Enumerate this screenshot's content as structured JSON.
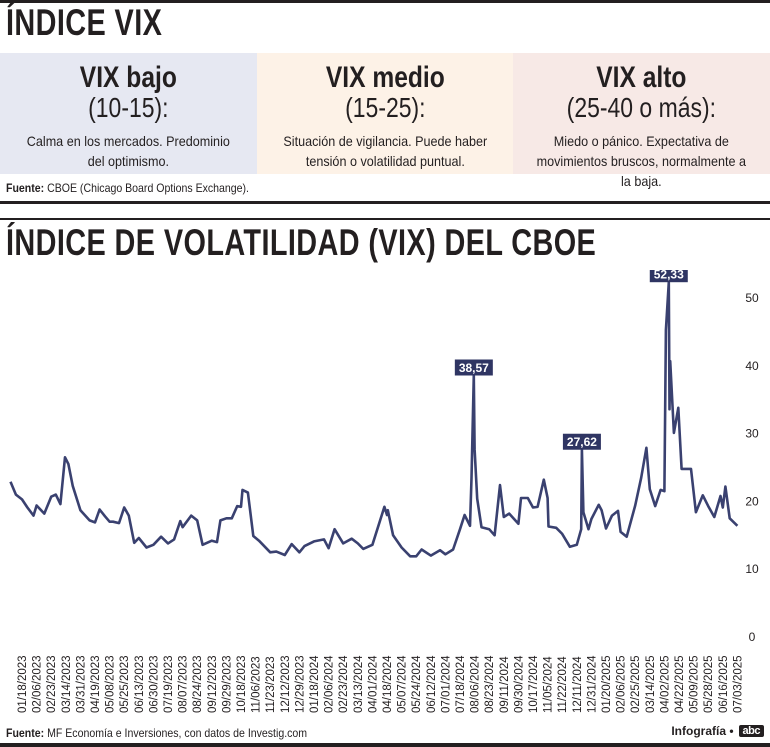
{
  "header": {
    "title": "ÍNDICE VIX"
  },
  "levels": [
    {
      "name": "VIX bajo",
      "range": "(10-15):",
      "description": "Calma en los mercados. Predominio del optimismo.",
      "color": "#e6e8f2"
    },
    {
      "name": "VIX medio",
      "range": "(15-25):",
      "description": "Situación de vigilancia. Puede haber tensión o volatilidad puntual.",
      "color": "#fdf2e7"
    },
    {
      "name": "VIX alto",
      "range": "(25-40 o más):",
      "description": "Miedo o pánico. Expectativa de movimientos bruscos, normalmente a la baja.",
      "color": "#f7e9e6"
    }
  ],
  "source_top": {
    "label": "Fuente:",
    "text": " CBOE (Chicago Board Options Exchange)."
  },
  "source_bottom": {
    "label": "Fuente:",
    "text": " MF Economía e Inversiones, con datos de Investig.com"
  },
  "credit": {
    "text": "Infografía •",
    "logo": "abc"
  },
  "chart_data": {
    "type": "line",
    "title": "ÍNDICE DE VOLATILIDAD (VIX) DEL CBOE",
    "xlabel": "",
    "ylabel": "",
    "ylim": [
      0,
      55
    ],
    "y_ticks": [
      0,
      10,
      20,
      30,
      40,
      50
    ],
    "grid": false,
    "y_axis_side": "right",
    "line_color": "#3a4170",
    "x_tick_labels": [
      "01/18/2023",
      "02/06/2023",
      "02/23/2023",
      "03/14/2023",
      "03/31/2023",
      "04/19/2023",
      "05/08/2023",
      "05/25/2023",
      "06/13/2023",
      "06/30/2023",
      "07/19/2023",
      "08/07/2023",
      "08/24/2023",
      "09/12/2023",
      "09/29/2023",
      "10/18/2023",
      "11/06/2023",
      "11/23/2023",
      "12/12/2023",
      "12/29/2023",
      "01/18/2024",
      "02/06/2024",
      "02/23/2024",
      "03/13/2024",
      "04/01/2024",
      "04/18/2024",
      "05/07/2024",
      "05/24/2024",
      "06/12/2024",
      "07/01/2024",
      "07/18/2024",
      "08/06/2024",
      "08/23/2024",
      "09/11/2024",
      "09/30/2024",
      "10/17/2024",
      "11/05/2024",
      "11/22/2024",
      "12/11/2024",
      "12/31/2024",
      "01/20/2025",
      "02/06/2025",
      "02/25/2025",
      "03/14/2025",
      "04/02/2025",
      "04/22/2025",
      "05/09/2025",
      "05/28/2025",
      "06/16/2025",
      "07/03/2025"
    ],
    "points": [
      [
        "01/03/2023",
        22.9
      ],
      [
        "01/10/2023",
        21.0
      ],
      [
        "01/18/2023",
        20.3
      ],
      [
        "01/25/2023",
        19.1
      ],
      [
        "02/02/2023",
        17.9
      ],
      [
        "02/06/2023",
        19.4
      ],
      [
        "02/15/2023",
        18.2
      ],
      [
        "02/23/2023",
        20.7
      ],
      [
        "03/01/2023",
        21.0
      ],
      [
        "03/07/2023",
        19.6
      ],
      [
        "03/13/2023",
        26.5
      ],
      [
        "03/17/2023",
        25.5
      ],
      [
        "03/22/2023",
        22.3
      ],
      [
        "03/31/2023",
        18.7
      ],
      [
        "04/12/2023",
        17.2
      ],
      [
        "04/19/2023",
        16.9
      ],
      [
        "04/25/2023",
        18.8
      ],
      [
        "05/02/2023",
        17.8
      ],
      [
        "05/08/2023",
        17.0
      ],
      [
        "05/12/2023",
        17.0
      ],
      [
        "05/19/2023",
        16.8
      ],
      [
        "05/25/2023",
        19.1
      ],
      [
        "05/31/2023",
        17.9
      ],
      [
        "06/07/2023",
        13.9
      ],
      [
        "06/13/2023",
        14.6
      ],
      [
        "06/22/2023",
        13.2
      ],
      [
        "06/30/2023",
        13.6
      ],
      [
        "07/10/2023",
        14.8
      ],
      [
        "07/19/2023",
        13.8
      ],
      [
        "07/27/2023",
        14.4
      ],
      [
        "08/04/2023",
        17.1
      ],
      [
        "08/07/2023",
        16.2
      ],
      [
        "08/17/2023",
        17.9
      ],
      [
        "08/24/2023",
        17.2
      ],
      [
        "08/31/2023",
        13.6
      ],
      [
        "09/12/2023",
        14.2
      ],
      [
        "09/18/2023",
        14.0
      ],
      [
        "09/22/2023",
        17.2
      ],
      [
        "09/29/2023",
        17.5
      ],
      [
        "10/06/2023",
        17.5
      ],
      [
        "10/13/2023",
        19.3
      ],
      [
        "10/18/2023",
        19.2
      ],
      [
        "10/20/2023",
        21.7
      ],
      [
        "10/27/2023",
        21.3
      ],
      [
        "11/03/2023",
        14.9
      ],
      [
        "11/10/2023",
        14.2
      ],
      [
        "11/23/2023",
        12.5
      ],
      [
        "12/01/2023",
        12.6
      ],
      [
        "12/12/2023",
        12.1
      ],
      [
        "12/20/2023",
        13.7
      ],
      [
        "12/29/2023",
        12.5
      ],
      [
        "01/05/2024",
        13.4
      ],
      [
        "01/18/2024",
        14.1
      ],
      [
        "01/31/2024",
        14.4
      ],
      [
        "02/06/2024",
        13.1
      ],
      [
        "02/13/2024",
        15.9
      ],
      [
        "02/23/2024",
        13.8
      ],
      [
        "03/05/2024",
        14.5
      ],
      [
        "03/13/2024",
        13.8
      ],
      [
        "03/20/2024",
        13.0
      ],
      [
        "04/01/2024",
        13.6
      ],
      [
        "04/15/2024",
        19.2
      ],
      [
        "04/18/2024",
        18.0
      ],
      [
        "04/19/2024",
        18.7
      ],
      [
        "04/26/2024",
        15.0
      ],
      [
        "05/07/2024",
        13.2
      ],
      [
        "05/17/2024",
        11.9
      ],
      [
        "05/24/2024",
        11.9
      ],
      [
        "05/31/2024",
        12.9
      ],
      [
        "06/12/2024",
        12.0
      ],
      [
        "06/24/2024",
        12.8
      ],
      [
        "07/01/2024",
        12.2
      ],
      [
        "07/10/2024",
        12.9
      ],
      [
        "07/18/2024",
        15.9
      ],
      [
        "07/24/2024",
        18.0
      ],
      [
        "07/31/2024",
        16.4
      ],
      [
        "08/02/2024",
        23.4
      ],
      [
        "08/05/2024",
        38.57
      ],
      [
        "08/06/2024",
        27.7
      ],
      [
        "08/09/2024",
        20.4
      ],
      [
        "08/14/2024",
        16.2
      ],
      [
        "08/23/2024",
        15.9
      ],
      [
        "08/30/2024",
        15.0
      ],
      [
        "09/06/2024",
        22.4
      ],
      [
        "09/11/2024",
        17.7
      ],
      [
        "09/18/2024",
        18.2
      ],
      [
        "09/30/2024",
        16.7
      ],
      [
        "10/03/2024",
        20.5
      ],
      [
        "10/11/2024",
        20.5
      ],
      [
        "10/17/2024",
        19.1
      ],
      [
        "10/23/2024",
        19.2
      ],
      [
        "10/31/2024",
        23.2
      ],
      [
        "11/05/2024",
        20.5
      ],
      [
        "11/06/2024",
        16.3
      ],
      [
        "11/15/2024",
        16.1
      ],
      [
        "11/22/2024",
        15.2
      ],
      [
        "12/02/2024",
        13.3
      ],
      [
        "12/11/2024",
        13.6
      ],
      [
        "12/17/2024",
        15.9
      ],
      [
        "12/18/2024",
        27.62
      ],
      [
        "12/20/2024",
        18.4
      ],
      [
        "12/27/2024",
        15.9
      ],
      [
        "12/31/2024",
        17.4
      ],
      [
        "01/10/2025",
        19.5
      ],
      [
        "01/14/2025",
        18.7
      ],
      [
        "01/20/2025",
        16.0
      ],
      [
        "01/27/2025",
        17.9
      ],
      [
        "02/03/2025",
        18.6
      ],
      [
        "02/06/2025",
        15.5
      ],
      [
        "02/14/2025",
        14.8
      ],
      [
        "02/25/2025",
        19.4
      ],
      [
        "03/04/2025",
        23.5
      ],
      [
        "03/10/2025",
        27.9
      ],
      [
        "03/14/2025",
        21.8
      ],
      [
        "03/21/2025",
        19.3
      ],
      [
        "03/28/2025",
        21.7
      ],
      [
        "04/02/2025",
        21.5
      ],
      [
        "04/04/2025",
        45.3
      ],
      [
        "04/08/2025",
        52.33
      ],
      [
        "04/09/2025",
        33.6
      ],
      [
        "04/10/2025",
        40.7
      ],
      [
        "04/15/2025",
        30.1
      ],
      [
        "04/21/2025",
        33.8
      ],
      [
        "04/25/2025",
        24.8
      ],
      [
        "05/06/2025",
        24.8
      ],
      [
        "05/12/2025",
        18.4
      ],
      [
        "05/21/2025",
        20.9
      ],
      [
        "05/28/2025",
        19.3
      ],
      [
        "06/05/2025",
        17.7
      ],
      [
        "06/13/2025",
        20.8
      ],
      [
        "06/16/2025",
        19.1
      ],
      [
        "06/19/2025",
        22.2
      ],
      [
        "06/24/2025",
        17.5
      ],
      [
        "07/03/2025",
        16.4
      ]
    ],
    "annotations": [
      {
        "date": "08/05/2024",
        "value": 38.57,
        "label": "38,57"
      },
      {
        "date": "12/18/2024",
        "value": 27.62,
        "label": "27,62"
      },
      {
        "date": "04/08/2025",
        "value": 52.33,
        "label": "52,33"
      }
    ],
    "annotation_color": "#2f3563"
  }
}
